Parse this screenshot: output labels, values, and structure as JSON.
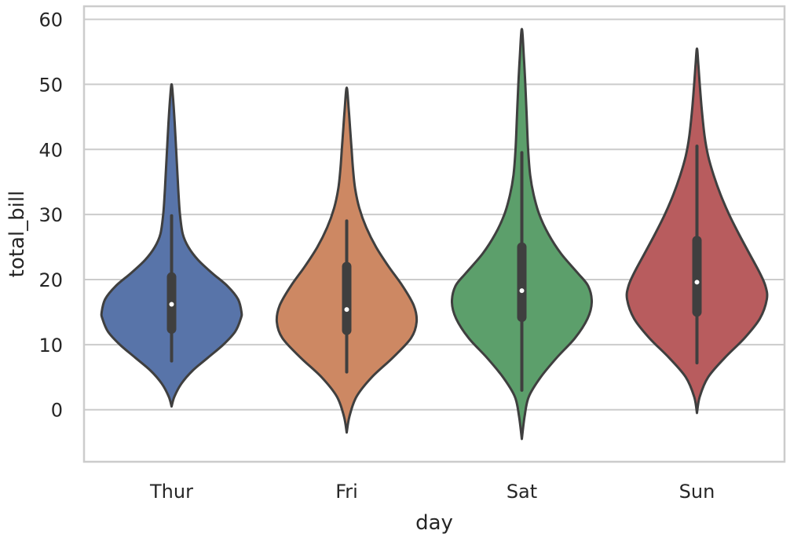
{
  "chart_data": {
    "type": "violin",
    "xlabel": "day",
    "ylabel": "total_bill",
    "ylim": [
      -8,
      62
    ],
    "yticks": [
      0,
      10,
      20,
      30,
      40,
      50,
      60
    ],
    "ytick_labels": [
      "0",
      "10",
      "20",
      "30",
      "40",
      "50",
      "60"
    ],
    "grid": true,
    "categories": [
      "Thur",
      "Fri",
      "Sat",
      "Sun"
    ],
    "series": [
      {
        "name": "Thur",
        "color": "#5874a9",
        "range": [
          0.5,
          50
        ],
        "whisker": [
          7.5,
          29.8
        ],
        "box": [
          12.4,
          20.4
        ],
        "median": 16.2,
        "density": [
          [
            0.5,
            0.0
          ],
          [
            2,
            0.04
          ],
          [
            4,
            0.14
          ],
          [
            6,
            0.3
          ],
          [
            8,
            0.52
          ],
          [
            10,
            0.74
          ],
          [
            12,
            0.91
          ],
          [
            14,
            0.99
          ],
          [
            15,
            1.0
          ],
          [
            17,
            0.95
          ],
          [
            19,
            0.8
          ],
          [
            21,
            0.58
          ],
          [
            23,
            0.38
          ],
          [
            25,
            0.24
          ],
          [
            27,
            0.16
          ],
          [
            30,
            0.12
          ],
          [
            33,
            0.1
          ],
          [
            36,
            0.085
          ],
          [
            40,
            0.065
          ],
          [
            44,
            0.045
          ],
          [
            48,
            0.02
          ],
          [
            50,
            0.0
          ]
        ]
      },
      {
        "name": "Fri",
        "color": "#cd8863",
        "range": [
          -3.5,
          49.5
        ],
        "whisker": [
          5.8,
          29
        ],
        "box": [
          12.2,
          22
        ],
        "median": 15.4,
        "density": [
          [
            -3.5,
            0.0
          ],
          [
            -1,
            0.04
          ],
          [
            2,
            0.14
          ],
          [
            5,
            0.36
          ],
          [
            8,
            0.66
          ],
          [
            11,
            0.92
          ],
          [
            13.5,
            1.0
          ],
          [
            16,
            0.96
          ],
          [
            19,
            0.8
          ],
          [
            22,
            0.6
          ],
          [
            25,
            0.42
          ],
          [
            28,
            0.28
          ],
          [
            31,
            0.18
          ],
          [
            34,
            0.12
          ],
          [
            37,
            0.09
          ],
          [
            40,
            0.07
          ],
          [
            43,
            0.05
          ],
          [
            46,
            0.03
          ],
          [
            49.5,
            0.0
          ]
        ]
      },
      {
        "name": "Sat",
        "color": "#5c9f6b",
        "range": [
          -4.5,
          58.5
        ],
        "whisker": [
          3,
          39.5
        ],
        "box": [
          14.2,
          25
        ],
        "median": 18.3,
        "density": [
          [
            -4.5,
            0.0
          ],
          [
            -1,
            0.04
          ],
          [
            2,
            0.1
          ],
          [
            5,
            0.27
          ],
          [
            8,
            0.5
          ],
          [
            11,
            0.76
          ],
          [
            14,
            0.94
          ],
          [
            16.5,
            1.0
          ],
          [
            19,
            0.95
          ],
          [
            21,
            0.8
          ],
          [
            24,
            0.56
          ],
          [
            27,
            0.38
          ],
          [
            30,
            0.25
          ],
          [
            33,
            0.17
          ],
          [
            36,
            0.12
          ],
          [
            40,
            0.09
          ],
          [
            45,
            0.07
          ],
          [
            50,
            0.05
          ],
          [
            54,
            0.03
          ],
          [
            58.5,
            0.0
          ]
        ]
      },
      {
        "name": "Sun",
        "color": "#b85c5e",
        "range": [
          -0.5,
          55.5
        ],
        "whisker": [
          7.2,
          40.5
        ],
        "box": [
          15,
          26
        ],
        "median": 19.6,
        "density": [
          [
            -0.5,
            0.0
          ],
          [
            2,
            0.04
          ],
          [
            5,
            0.16
          ],
          [
            8,
            0.4
          ],
          [
            11,
            0.68
          ],
          [
            14,
            0.9
          ],
          [
            17,
            1.0
          ],
          [
            19,
            0.98
          ],
          [
            21,
            0.9
          ],
          [
            24,
            0.75
          ],
          [
            27,
            0.6
          ],
          [
            30,
            0.46
          ],
          [
            33,
            0.34
          ],
          [
            36,
            0.24
          ],
          [
            39,
            0.16
          ],
          [
            42,
            0.11
          ],
          [
            46,
            0.07
          ],
          [
            50,
            0.04
          ],
          [
            53,
            0.02
          ],
          [
            55.5,
            0.0
          ]
        ]
      }
    ]
  }
}
